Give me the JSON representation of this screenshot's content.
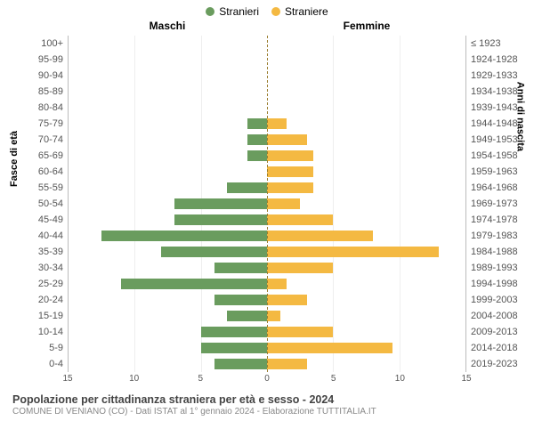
{
  "legend": {
    "male": {
      "label": "Stranieri",
      "color": "#6a9c5e"
    },
    "female": {
      "label": "Straniere",
      "color": "#f4b942"
    }
  },
  "headers": {
    "left": "Maschi",
    "right": "Femmine"
  },
  "y_titles": {
    "left": "Fasce di età",
    "right": "Anni di nascita"
  },
  "xaxis": {
    "min": -15,
    "max": 15,
    "ticks": [
      -15,
      -10,
      -5,
      0,
      5,
      10,
      15
    ],
    "labels": [
      "15",
      "10",
      "5",
      "0",
      "5",
      "10",
      "15"
    ]
  },
  "grid_color": "#eeeeee",
  "center_line_color": "#9a7d2e",
  "background_color": "#ffffff",
  "label_fontsize": 11,
  "tick_fontsize": 10,
  "rows": [
    {
      "age": "100+",
      "birth": "≤ 1923",
      "m": 0,
      "f": 0
    },
    {
      "age": "95-99",
      "birth": "1924-1928",
      "m": 0,
      "f": 0
    },
    {
      "age": "90-94",
      "birth": "1929-1933",
      "m": 0,
      "f": 0
    },
    {
      "age": "85-89",
      "birth": "1934-1938",
      "m": 0,
      "f": 0
    },
    {
      "age": "80-84",
      "birth": "1939-1943",
      "m": 0,
      "f": 0
    },
    {
      "age": "75-79",
      "birth": "1944-1948",
      "m": 1.5,
      "f": 1.5
    },
    {
      "age": "70-74",
      "birth": "1949-1953",
      "m": 1.5,
      "f": 3
    },
    {
      "age": "65-69",
      "birth": "1954-1958",
      "m": 1.5,
      "f": 3.5
    },
    {
      "age": "60-64",
      "birth": "1959-1963",
      "m": 0,
      "f": 3.5
    },
    {
      "age": "55-59",
      "birth": "1964-1968",
      "m": 3,
      "f": 3.5
    },
    {
      "age": "50-54",
      "birth": "1969-1973",
      "m": 7,
      "f": 2.5
    },
    {
      "age": "45-49",
      "birth": "1974-1978",
      "m": 7,
      "f": 5
    },
    {
      "age": "40-44",
      "birth": "1979-1983",
      "m": 12.5,
      "f": 8
    },
    {
      "age": "35-39",
      "birth": "1984-1988",
      "m": 8,
      "f": 13
    },
    {
      "age": "30-34",
      "birth": "1989-1993",
      "m": 4,
      "f": 5
    },
    {
      "age": "25-29",
      "birth": "1994-1998",
      "m": 11,
      "f": 1.5
    },
    {
      "age": "20-24",
      "birth": "1999-2003",
      "m": 4,
      "f": 3
    },
    {
      "age": "15-19",
      "birth": "2004-2008",
      "m": 3,
      "f": 1
    },
    {
      "age": "10-14",
      "birth": "2009-2013",
      "m": 5,
      "f": 5
    },
    {
      "age": "5-9",
      "birth": "2014-2018",
      "m": 5,
      "f": 9.5
    },
    {
      "age": "0-4",
      "birth": "2019-2023",
      "m": 4,
      "f": 3
    }
  ],
  "footer": {
    "title": "Popolazione per cittadinanza straniera per età e sesso - 2024",
    "sub": "COMUNE DI VENIANO (CO) - Dati ISTAT al 1° gennaio 2024 - Elaborazione TUTTITALIA.IT"
  }
}
